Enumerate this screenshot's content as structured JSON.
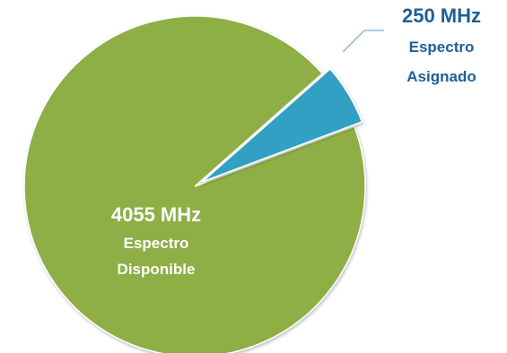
{
  "chart_data": {
    "type": "pie",
    "unit": "MHz",
    "slices": [
      {
        "value": 4055,
        "value_label": "4055 MHz",
        "name_lines": [
          "Espectro",
          "Disponible"
        ],
        "color": "#8DAF45",
        "label_color": "#FFFFFF"
      },
      {
        "value": 250,
        "value_label": "250 MHz",
        "name_lines": [
          "Espectro",
          "Asignado"
        ],
        "color": "#31A0C2",
        "label_color": "#1F5F96",
        "exploded": true
      }
    ],
    "leader_line_color": "#8FB7DA"
  }
}
